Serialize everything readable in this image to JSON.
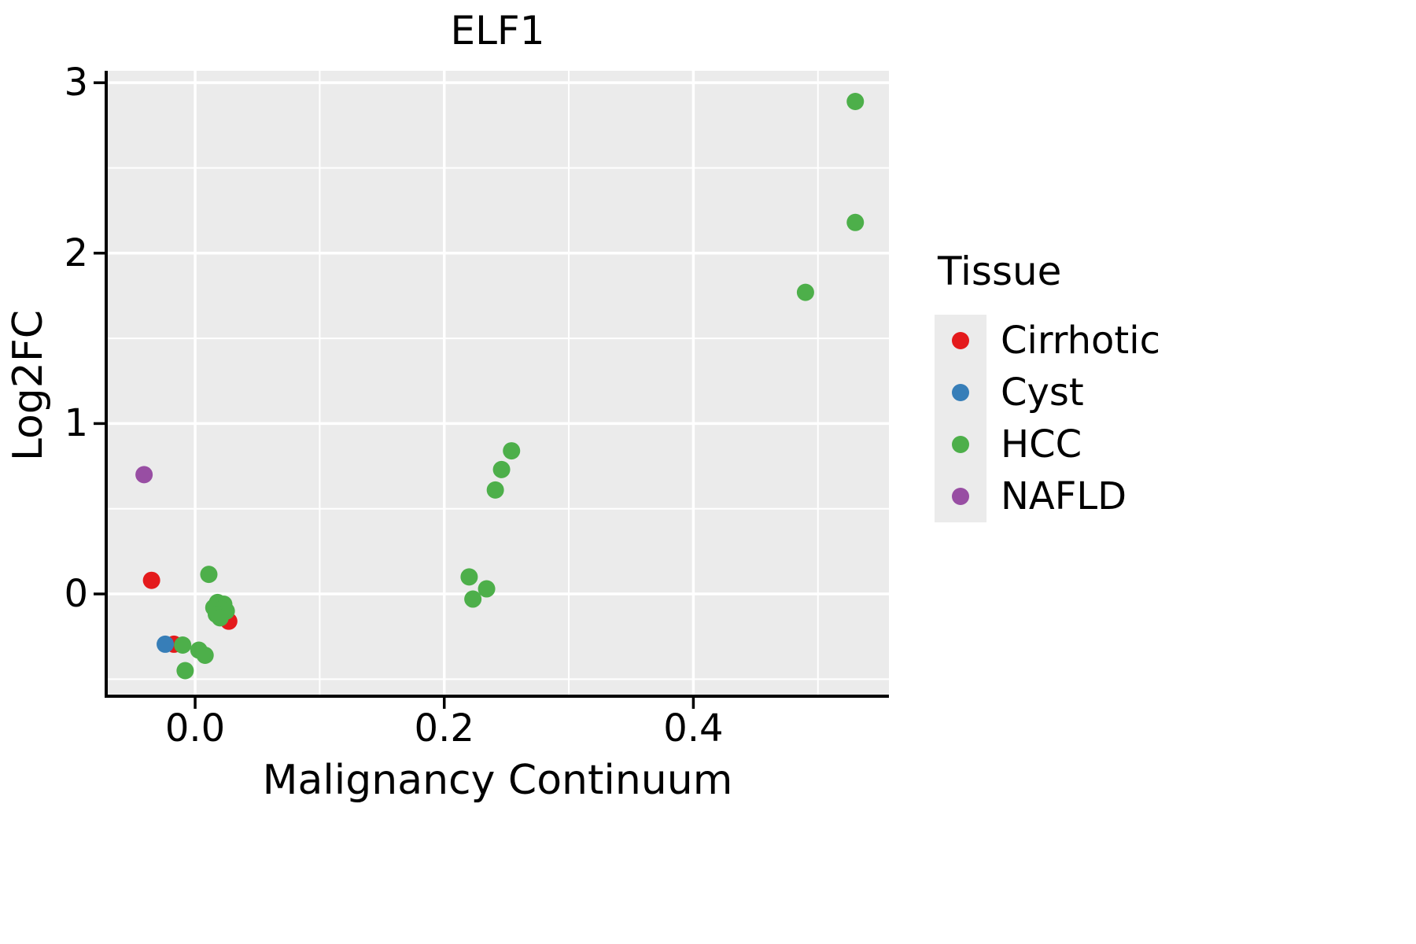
{
  "chart_data": {
    "type": "scatter",
    "title": "ELF1",
    "xlabel": "Malignancy Continuum",
    "ylabel": "Log2FC",
    "legend_title": "Tissue",
    "legend_position": "right",
    "grid": true,
    "panel_bg": "#EBEBEB",
    "grid_color": "#FFFFFF",
    "axis_color": "#000000",
    "point_radius": 11,
    "xlim": [
      -0.0714,
      0.557
    ],
    "ylim": [
      -0.6,
      3.07
    ],
    "x_ticks": [
      0.0,
      0.2,
      0.4
    ],
    "x_tick_labels": [
      "0.0",
      "0.2",
      "0.4"
    ],
    "x_minor_ticks": [
      0.1,
      0.3,
      0.5
    ],
    "y_ticks": [
      0,
      1,
      2,
      3
    ],
    "y_tick_labels": [
      "0",
      "1",
      "2",
      "3"
    ],
    "y_minor_ticks": [
      -0.5,
      0.5,
      1.5,
      2.5
    ],
    "series": [
      {
        "name": "Cirrhotic",
        "color": "#E41A1C",
        "points": [
          [
            -0.035,
            0.08
          ],
          [
            0.027,
            -0.16
          ],
          [
            -0.017,
            -0.295
          ]
        ]
      },
      {
        "name": "Cyst",
        "color": "#377EB8",
        "points": [
          [
            -0.024,
            -0.295
          ]
        ]
      },
      {
        "name": "HCC",
        "color": "#4DAF4A",
        "points": [
          [
            0.53,
            2.89
          ],
          [
            0.53,
            2.18
          ],
          [
            0.49,
            1.77
          ],
          [
            0.254,
            0.84
          ],
          [
            0.246,
            0.73
          ],
          [
            0.241,
            0.61
          ],
          [
            0.22,
            0.1
          ],
          [
            0.234,
            0.03
          ],
          [
            0.223,
            -0.03
          ],
          [
            0.011,
            0.115
          ],
          [
            0.018,
            -0.05
          ],
          [
            0.023,
            -0.06
          ],
          [
            0.015,
            -0.08
          ],
          [
            0.021,
            -0.09
          ],
          [
            0.025,
            -0.1
          ],
          [
            0.017,
            -0.12
          ],
          [
            0.02,
            -0.14
          ],
          [
            -0.01,
            -0.3
          ],
          [
            0.003,
            -0.33
          ],
          [
            0.008,
            -0.36
          ],
          [
            -0.008,
            -0.45
          ]
        ]
      },
      {
        "name": "NAFLD",
        "color": "#984EA3",
        "points": [
          [
            -0.041,
            0.7
          ]
        ]
      }
    ]
  }
}
